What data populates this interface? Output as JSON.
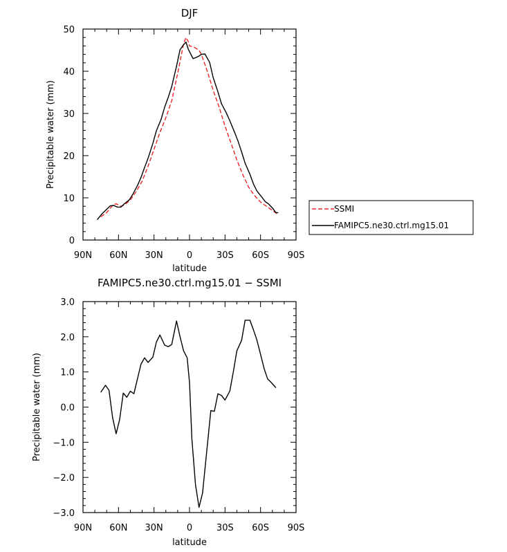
{
  "chart_data": [
    {
      "type": "line",
      "title": "DJF",
      "xlabel": "latitude",
      "ylabel": "Precipitable water (mm)",
      "xlim": [
        90,
        -90
      ],
      "ylim": [
        0,
        50
      ],
      "x_ticks": [
        90,
        60,
        30,
        0,
        -30,
        -60,
        -90
      ],
      "x_tick_labels": [
        "90N",
        "60N",
        "30N",
        "0",
        "30S",
        "60S",
        "90S"
      ],
      "y_ticks": [
        0,
        10,
        20,
        30,
        40,
        50
      ],
      "y_tick_labels": [
        "0",
        "10",
        "20",
        "30",
        "40",
        "50"
      ],
      "legend_position": "right",
      "series": [
        {
          "name": "SSMI",
          "color": "#e8262a",
          "dash": "dashed",
          "x": [
            75,
            70,
            65,
            62,
            58,
            55,
            50,
            45,
            40,
            35,
            30,
            25,
            20,
            15,
            10,
            5,
            3,
            1,
            0,
            -3,
            -5,
            -8,
            -10,
            -15,
            -20,
            -25,
            -30,
            -35,
            -40,
            -45,
            -50,
            -55,
            -60,
            -65,
            -70,
            -75
          ],
          "values": [
            5.5,
            6.5,
            8.2,
            8.6,
            8.0,
            8.3,
            9.5,
            11.5,
            14.0,
            17.5,
            21.5,
            25.5,
            29.0,
            33.0,
            39.5,
            46.5,
            48.0,
            47.0,
            46.0,
            45.8,
            45.5,
            45.0,
            44.0,
            40.0,
            35.5,
            31.5,
            27.0,
            23.0,
            19.0,
            15.5,
            12.5,
            10.5,
            9.0,
            8.0,
            7.0,
            6.0
          ]
        },
        {
          "name": "FAMIPC5.ne30.ctrl.mg15.01",
          "color": "#000000",
          "dash": "solid",
          "x": [
            78,
            74,
            71,
            67,
            64,
            61,
            58,
            55,
            51,
            48,
            44,
            41,
            38,
            35,
            31,
            28,
            24,
            21,
            18,
            15,
            11,
            8,
            5,
            3,
            1,
            -1,
            -3,
            -5,
            -8,
            -10,
            -13,
            -17,
            -20,
            -24,
            -27,
            -31,
            -34,
            -38,
            -41,
            -44,
            -47,
            -51,
            -54,
            -57,
            -61,
            -64,
            -67,
            -70,
            -73,
            -75
          ],
          "values": [
            4.8,
            6.2,
            7.0,
            8.1,
            8.2,
            7.8,
            7.8,
            8.6,
            9.5,
            10.8,
            12.9,
            14.8,
            17.2,
            19.4,
            22.9,
            25.9,
            28.6,
            31.5,
            33.8,
            36.4,
            41.2,
            45.1,
            46.3,
            46.9,
            45.2,
            44.1,
            43.0,
            43.2,
            43.6,
            44.0,
            44.1,
            42.1,
            38.5,
            35.1,
            32.3,
            30.2,
            28.3,
            25.6,
            23.4,
            20.9,
            18.2,
            15.6,
            13.3,
            11.6,
            10.2,
            9.1,
            8.5,
            7.6,
            6.5,
            6.5
          ]
        }
      ]
    },
    {
      "type": "line",
      "title": "FAMIPC5.ne30.ctrl.mg15.01  −  SSMI",
      "xlabel": "latitude",
      "ylabel": "Precipitable water (mm)",
      "xlim": [
        90,
        -90
      ],
      "ylim": [
        -3,
        3
      ],
      "x_ticks": [
        90,
        60,
        30,
        0,
        -30,
        -60,
        -90
      ],
      "x_tick_labels": [
        "90N",
        "60N",
        "30N",
        "0",
        "30S",
        "60S",
        "90S"
      ],
      "y_ticks": [
        -3,
        -2,
        -1,
        0,
        1,
        2,
        3
      ],
      "y_tick_labels": [
        "−3.0",
        "−2.0",
        "−1.0",
        "0.0",
        "1.0",
        "2.0",
        "3.0"
      ],
      "series": [
        {
          "color": "#000000",
          "dash": "solid",
          "x": [
            75,
            71,
            68,
            65,
            62,
            59,
            56,
            53,
            50,
            47,
            44,
            41,
            38,
            35,
            31,
            28,
            25,
            21,
            18,
            15,
            11,
            8,
            5,
            2,
            0,
            -2,
            -5,
            -8,
            -11,
            -15,
            -18,
            -21,
            -24,
            -27,
            -30,
            -34,
            -37,
            -40,
            -44,
            -47,
            -51,
            -54,
            -57,
            -60,
            -63,
            -66,
            -69,
            -73
          ],
          "values": [
            0.42,
            0.62,
            0.48,
            -0.3,
            -0.76,
            -0.35,
            0.4,
            0.28,
            0.45,
            0.38,
            0.8,
            1.22,
            1.4,
            1.27,
            1.42,
            1.85,
            2.05,
            1.76,
            1.72,
            1.78,
            2.45,
            2.0,
            1.6,
            1.4,
            0.7,
            -0.9,
            -2.2,
            -2.85,
            -2.45,
            -1.1,
            -0.1,
            -0.12,
            0.38,
            0.33,
            0.2,
            0.45,
            1.0,
            1.6,
            1.9,
            2.47,
            2.47,
            2.2,
            1.9,
            1.5,
            1.1,
            0.8,
            0.7,
            0.55
          ]
        }
      ]
    }
  ]
}
